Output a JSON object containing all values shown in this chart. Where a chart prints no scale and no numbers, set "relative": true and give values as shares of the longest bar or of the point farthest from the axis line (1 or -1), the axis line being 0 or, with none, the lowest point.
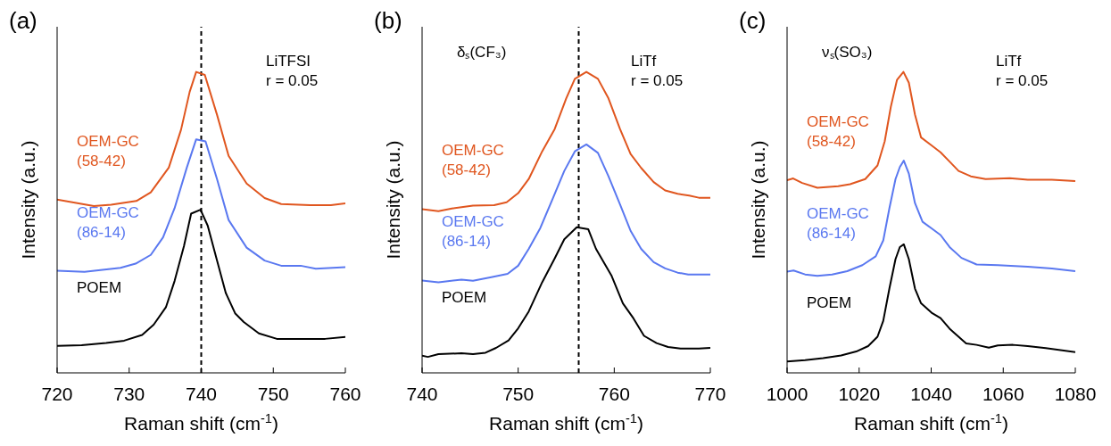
{
  "chart_data": [
    {
      "type": "line",
      "title": "(a)",
      "xlabel": "Raman shift (cm$^{-1}$)",
      "ylabel": "Intensity (a.u.)",
      "relative": true,
      "xlim": [
        720,
        760
      ],
      "xticks": [
        720,
        730,
        740,
        750,
        760
      ],
      "annotations": [
        "LiTFSI",
        "r = 0.05"
      ],
      "ref_lines": [
        {
          "axis": "x",
          "value": 740,
          "line_style": "dashed",
          "color": "#000000"
        }
      ],
      "series": [
        {
          "name": "OEM-GC (58-42)",
          "color": "#e0561f",
          "x": [
            720,
            725.1,
            727.5,
            731,
            733,
            735.5,
            737.2,
            738.4,
            739.3,
            740.5,
            742.2,
            743.8,
            746.3,
            748.8,
            751.1,
            755.1,
            758,
            760
          ],
          "values": [
            0.576,
            0.554,
            0.559,
            0.571,
            0.6,
            0.682,
            0.808,
            0.934,
            1.0,
            0.99,
            0.857,
            0.721,
            0.629,
            0.581,
            0.561,
            0.557,
            0.557,
            0.563
          ]
        },
        {
          "name": "OEM-GC (86-14)",
          "color": "#5a78f0",
          "x": [
            720,
            723.8,
            726.3,
            728.8,
            730.9,
            733,
            734.7,
            736.3,
            738,
            739.3,
            740.6,
            742.2,
            743.8,
            746.3,
            748.8,
            751.1,
            753.8,
            755.9,
            760
          ],
          "values": [
            0.339,
            0.336,
            0.342,
            0.349,
            0.363,
            0.392,
            0.45,
            0.547,
            0.682,
            0.776,
            0.769,
            0.643,
            0.508,
            0.416,
            0.373,
            0.356,
            0.356,
            0.346,
            0.351
          ]
        },
        {
          "name": "POEM",
          "color": "#000000",
          "x": [
            720,
            723.4,
            726.8,
            729.3,
            731.8,
            733.4,
            735.1,
            736.3,
            737.6,
            738.6,
            739.9,
            740.9,
            742.2,
            743.4,
            744.7,
            745.9,
            748,
            750.5,
            753.8,
            757.2,
            760
          ],
          "values": [
            0.09,
            0.092,
            0.099,
            0.107,
            0.126,
            0.16,
            0.218,
            0.305,
            0.421,
            0.529,
            0.542,
            0.489,
            0.373,
            0.266,
            0.198,
            0.169,
            0.131,
            0.113,
            0.113,
            0.113,
            0.119
          ]
        }
      ]
    },
    {
      "type": "line",
      "title": "(b)",
      "xlabel": "Raman shift (cm$^{-1}$)",
      "ylabel": "Intensity (a.u.)",
      "relative": true,
      "xlim": [
        740,
        770
      ],
      "xticks": [
        740,
        750,
        760,
        770
      ],
      "annotations": [
        "δₛ(CF₃)",
        "LiTf",
        "r = 0.05"
      ],
      "ref_lines": [
        {
          "axis": "x",
          "value": 756.3,
          "line_style": "dashed",
          "color": "#000000"
        }
      ],
      "series": [
        {
          "name": "OEM-GC (58-42)",
          "color": "#e0561f",
          "x": [
            740,
            741.7,
            743.1,
            745.3,
            747.5,
            748.8,
            750,
            751.1,
            752.5,
            753.8,
            755,
            755.9,
            757.1,
            758.3,
            759.4,
            760.6,
            761.7,
            762.8,
            764.1,
            765.3,
            766.6,
            767.8,
            768.8,
            770
          ],
          "values": [
            0.544,
            0.537,
            0.546,
            0.556,
            0.557,
            0.567,
            0.597,
            0.644,
            0.736,
            0.81,
            0.912,
            0.977,
            1.0,
            0.977,
            0.912,
            0.81,
            0.727,
            0.681,
            0.634,
            0.606,
            0.595,
            0.589,
            0.582,
            0.582
          ]
        },
        {
          "name": "OEM-GC (86-14)",
          "color": "#5a78f0",
          "x": [
            740,
            741.7,
            744.1,
            745.3,
            747.2,
            748.9,
            750,
            751.1,
            752.3,
            753.6,
            754.8,
            755.9,
            757.1,
            758.3,
            759.4,
            760.6,
            761.7,
            762.8,
            764.1,
            765.3,
            766.6,
            767.7,
            770
          ],
          "values": [
            0.307,
            0.301,
            0.31,
            0.306,
            0.318,
            0.329,
            0.356,
            0.412,
            0.481,
            0.579,
            0.671,
            0.736,
            0.759,
            0.731,
            0.653,
            0.56,
            0.472,
            0.412,
            0.368,
            0.347,
            0.333,
            0.327,
            0.327
          ]
        },
        {
          "name": "POEM",
          "color": "#000000",
          "x": [
            740,
            740.6,
            741.7,
            744.1,
            745.3,
            746.6,
            747.7,
            749,
            750,
            751.1,
            752.5,
            753.8,
            754.8,
            756.1,
            757.3,
            758.1,
            759.7,
            760.9,
            762,
            763.1,
            764.4,
            765.6,
            766.9,
            768.8,
            770
          ],
          "values": [
            0.057,
            0.053,
            0.062,
            0.065,
            0.062,
            0.067,
            0.083,
            0.108,
            0.148,
            0.204,
            0.301,
            0.38,
            0.444,
            0.484,
            0.477,
            0.412,
            0.324,
            0.231,
            0.181,
            0.123,
            0.099,
            0.086,
            0.081,
            0.081,
            0.083
          ]
        }
      ]
    },
    {
      "type": "line",
      "title": "(c)",
      "xlabel": "Raman shift (cm$^{-1}$)",
      "ylabel": "Intensity (a.u.)",
      "relative": true,
      "xlim": [
        1000,
        1080
      ],
      "xticks": [
        1000,
        1020,
        1040,
        1060,
        1080
      ],
      "annotations": [
        "νₛ(SO₃)",
        "LiTf",
        "r = 0.05"
      ],
      "series": [
        {
          "name": "OEM-GC (58-42)",
          "color": "#e0561f",
          "x": [
            1000,
            1001.7,
            1004.2,
            1008.4,
            1014.2,
            1017.5,
            1021.7,
            1025.1,
            1027.1,
            1028.8,
            1030.5,
            1032.3,
            1033.8,
            1035.5,
            1037.2,
            1040.1,
            1042.6,
            1045.1,
            1047.6,
            1051,
            1055.1,
            1061.8,
            1066.8,
            1073.5,
            1080
          ],
          "values": [
            0.64,
            0.646,
            0.631,
            0.615,
            0.62,
            0.627,
            0.644,
            0.689,
            0.769,
            0.884,
            0.973,
            1.0,
            0.964,
            0.858,
            0.782,
            0.756,
            0.733,
            0.702,
            0.671,
            0.653,
            0.644,
            0.647,
            0.642,
            0.642,
            0.637
          ]
        },
        {
          "name": "OEM-GC (86-14)",
          "color": "#5a78f0",
          "x": [
            1000,
            1001.8,
            1005,
            1008.4,
            1012.5,
            1016.7,
            1020.9,
            1024.6,
            1026.7,
            1028.4,
            1030.1,
            1031.3,
            1032.4,
            1033.8,
            1035.5,
            1037.6,
            1040.1,
            1042.6,
            1045.1,
            1048.4,
            1052.6,
            1058.5,
            1066.8,
            1073.5,
            1080
          ],
          "values": [
            0.336,
            0.34,
            0.327,
            0.322,
            0.327,
            0.338,
            0.358,
            0.387,
            0.44,
            0.547,
            0.644,
            0.684,
            0.705,
            0.662,
            0.564,
            0.502,
            0.48,
            0.458,
            0.418,
            0.382,
            0.36,
            0.358,
            0.353,
            0.347,
            0.338
          ]
        },
        {
          "name": "POEM",
          "color": "#000000",
          "x": [
            1000,
            1005,
            1010,
            1015,
            1019.2,
            1022.5,
            1025.1,
            1026.7,
            1028.4,
            1030.1,
            1031.3,
            1032.4,
            1033.8,
            1035.5,
            1037.2,
            1040.1,
            1042.6,
            1045.1,
            1047.6,
            1049.7,
            1052.6,
            1056,
            1058.5,
            1062.7,
            1066.8,
            1071.8,
            1080
          ],
          "values": [
            0.038,
            0.042,
            0.049,
            0.058,
            0.071,
            0.089,
            0.12,
            0.173,
            0.28,
            0.378,
            0.418,
            0.427,
            0.378,
            0.28,
            0.231,
            0.2,
            0.182,
            0.147,
            0.12,
            0.098,
            0.093,
            0.084,
            0.091,
            0.093,
            0.089,
            0.082,
            0.069
          ]
        }
      ]
    }
  ]
}
